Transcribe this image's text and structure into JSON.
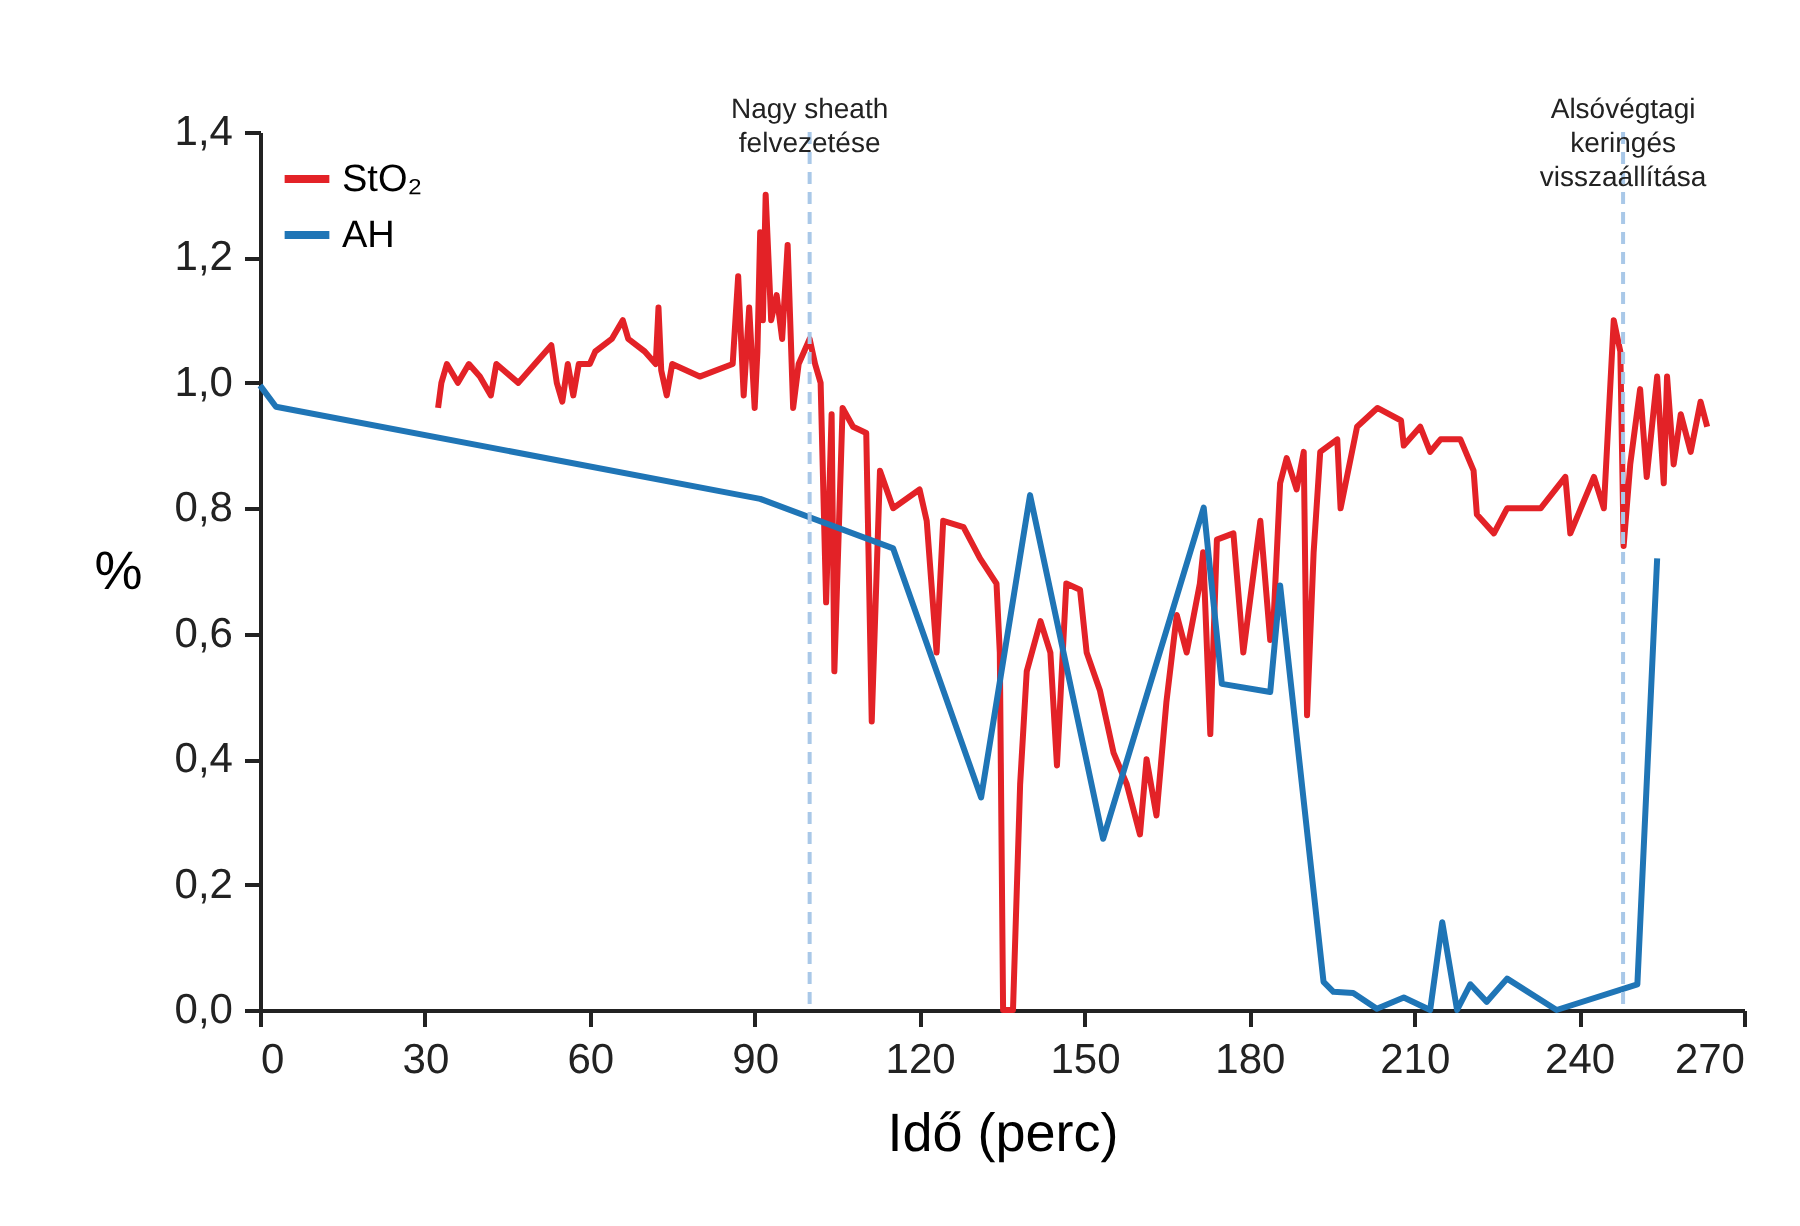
{
  "chart_data": {
    "type": "line",
    "xlabel": "Idő (perc)",
    "ylabel": "%",
    "xlim": [
      0,
      270
    ],
    "xticks": [
      0,
      30,
      60,
      90,
      120,
      150,
      180,
      210,
      240,
      270
    ],
    "ylim": [
      0,
      1.4
    ],
    "yticks": [
      {
        "value": 0,
        "label": "0,0"
      },
      {
        "value": 0.2,
        "label": "0,2"
      },
      {
        "value": 0.4,
        "label": "0,4"
      },
      {
        "value": 0.6,
        "label": "0,6"
      },
      {
        "value": 0.8,
        "label": "0,8"
      },
      {
        "value": 1.0,
        "label": "1,0"
      },
      {
        "value": 1.2,
        "label": "1,2"
      },
      {
        "value": 1.4,
        "label": "1,4"
      }
    ],
    "grid": false,
    "legend": "top left",
    "marker": "none",
    "line_style": "solid",
    "ref_lines": [
      {
        "axis": "x",
        "value": 100,
        "label": "Nagy sheath felvezetése",
        "color": "#a9c8e8",
        "line_style": "dashed"
      },
      {
        "axis": "x",
        "value": 248,
        "label": "Alsóvégtagi keringés visszaállítása",
        "color": "#a9c8e8",
        "line_style": "dashed"
      }
    ],
    "series": [
      {
        "name": "StO₂",
        "color": "#e32227",
        "x": [
          32.4,
          33,
          34,
          36,
          38,
          40,
          42,
          43,
          47,
          50,
          53,
          54,
          55,
          56,
          57,
          58,
          60,
          61,
          64,
          66,
          67,
          70,
          72,
          72.5,
          73,
          74,
          75,
          80,
          86,
          87,
          88,
          89,
          90,
          90.5,
          91,
          91.5,
          92,
          93,
          94,
          95,
          96,
          97,
          98,
          99,
          100,
          101,
          102,
          103,
          104,
          104.5,
          106,
          107.9,
          110.3,
          111.3,
          112.8,
          115.2,
          120,
          121.3,
          123.1,
          124.3,
          128,
          131,
          134,
          134.6,
          135.2,
          137,
          138.3,
          139.5,
          142,
          143.8,
          145,
          146.7,
          149.2,
          150.4,
          152.8,
          155.3,
          157.7,
          160.1,
          161.3,
          163.1,
          164.9,
          166.8,
          168.6,
          171,
          171.6,
          172.9,
          174.1,
          177.1,
          178.9,
          182,
          183.8,
          184.4,
          185.6,
          186.8,
          188.6,
          189.9,
          190.5,
          191.7,
          192.9,
          196,
          196.6,
          199.6,
          203.3,
          207.6,
          208.1,
          211.1,
          212.9,
          214.8,
          218.4,
          220.8,
          221.4,
          224.5,
          226.9,
          233,
          237.5,
          238.4,
          242.7,
          244.5,
          246.3,
          247.5,
          248.1,
          249.3,
          251.1,
          252.3,
          254.2,
          255.4,
          256,
          257.2,
          258.5,
          260.3,
          262.1,
          263.3
        ],
        "values": [
          0.96,
          1.0,
          1.03,
          1.0,
          1.03,
          1.01,
          0.98,
          1.03,
          1.0,
          1.03,
          1.06,
          1.0,
          0.97,
          1.03,
          0.98,
          1.03,
          1.03,
          1.05,
          1.07,
          1.1,
          1.07,
          1.05,
          1.03,
          1.12,
          1.02,
          0.98,
          1.03,
          1.01,
          1.03,
          1.17,
          0.98,
          1.12,
          0.96,
          1.05,
          1.24,
          1.1,
          1.3,
          1.1,
          1.14,
          1.07,
          1.22,
          0.96,
          1.03,
          1.05,
          1.07,
          1.03,
          1.0,
          0.65,
          0.95,
          0.54,
          0.96,
          0.93,
          0.92,
          0.46,
          0.86,
          0.8,
          0.83,
          0.78,
          0.57,
          0.78,
          0.77,
          0.72,
          0.68,
          0.57,
          0,
          0,
          0.36,
          0.54,
          0.62,
          0.57,
          0.39,
          0.68,
          0.67,
          0.57,
          0.51,
          0.41,
          0.36,
          0.28,
          0.4,
          0.31,
          0.49,
          0.63,
          0.57,
          0.68,
          0.73,
          0.44,
          0.75,
          0.76,
          0.57,
          0.78,
          0.59,
          0.62,
          0.84,
          0.88,
          0.83,
          0.89,
          0.47,
          0.73,
          0.89,
          0.91,
          0.8,
          0.93,
          0.96,
          0.94,
          0.9,
          0.93,
          0.89,
          0.91,
          0.91,
          0.86,
          0.79,
          0.76,
          0.8,
          0.8,
          0.85,
          0.76,
          0.85,
          0.8,
          1.1,
          1.05,
          0.74,
          0.87,
          0.99,
          0.85,
          1.01,
          0.84,
          1.01,
          0.87,
          0.95,
          0.89,
          0.97,
          0.93
        ]
      },
      {
        "name": "AH",
        "color": "#1f75b6",
        "x": [
          0,
          2.9,
          91,
          115.2,
          131.2,
          140.1,
          153.4,
          171.7,
          175,
          183.8,
          185.6,
          193.5,
          195.3,
          198.9,
          203.2,
          208.1,
          212.9,
          215.1,
          217.8,
          220.2,
          223.2,
          226.9,
          235.9,
          250.6,
          254.2
        ],
        "values": [
          0.996,
          0.962,
          0.815,
          0.736,
          0.339,
          0.821,
          0.273,
          0.801,
          0.52,
          0.507,
          0.677,
          0.045,
          0.029,
          0.027,
          0.002,
          0.02,
          0,
          0.14,
          0,
          0.041,
          0.013,
          0.05,
          0,
          0.041,
          0.72
        ]
      }
    ]
  }
}
